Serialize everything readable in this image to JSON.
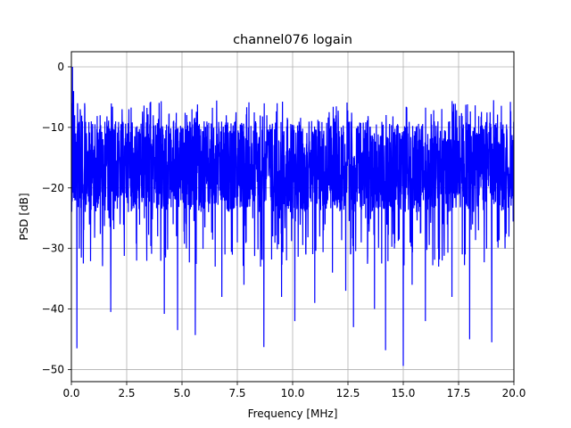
{
  "chart_data": {
    "type": "line",
    "title": "channel076 logain",
    "xlabel": "Frequency [MHz]",
    "ylabel": "PSD [dB]",
    "xlim": [
      0,
      20
    ],
    "ylim": [
      -52,
      2.5
    ],
    "xticks": [
      0,
      2.5,
      5,
      7.5,
      10,
      12.5,
      15,
      17.5,
      20
    ],
    "xtick_labels": [
      "0.0",
      "2.5",
      "5.0",
      "7.5",
      "10.0",
      "12.5",
      "15.0",
      "17.5",
      "20.0"
    ],
    "yticks": [
      0,
      -10,
      -20,
      -30,
      -40,
      -50
    ],
    "ytick_labels": [
      "0",
      "−10",
      "−20",
      "−30",
      "−40",
      "−50"
    ],
    "grid": true,
    "legend": "none",
    "series": [
      {
        "color": "#0000ff",
        "x": [
          0,
          0.05,
          0.08,
          0.1,
          0.12,
          0.15,
          0.18,
          0.2,
          0.25,
          0.28,
          0.32,
          0.36,
          0.4,
          0.45,
          0.5,
          0.55,
          0.6,
          0.7,
          0.8,
          0.9,
          1.0,
          1.1,
          1.2,
          1.3,
          1.4,
          1.5,
          1.6,
          1.7,
          1.78,
          1.85,
          2.0,
          2.2,
          2.4,
          2.6,
          2.8,
          2.95,
          3.1,
          3.3,
          3.5,
          3.7,
          3.9,
          4.0,
          4.2,
          4.45,
          4.6,
          4.8,
          5.0,
          5.2,
          5.45,
          5.6,
          5.8,
          6.0,
          6.2,
          6.5,
          6.6,
          6.8,
          7.0,
          7.2,
          7.5,
          7.6,
          7.8,
          8.0,
          8.2,
          8.4,
          8.55,
          8.7,
          8.9,
          9.1,
          9.3,
          9.5,
          9.7,
          9.9,
          10.1,
          10.3,
          10.6,
          10.8,
          11.0,
          11.2,
          11.4,
          11.6,
          11.8,
          12.0,
          12.2,
          12.4,
          12.6,
          12.75,
          12.9,
          13.1,
          13.3,
          13.5,
          13.7,
          13.9,
          14.1,
          14.2,
          14.4,
          14.6,
          14.8,
          15.0,
          15.05,
          15.2,
          15.4,
          15.6,
          15.8,
          16.0,
          16.2,
          16.4,
          16.6,
          16.8,
          17.0,
          17.2,
          17.4,
          17.6,
          17.8,
          18.0,
          18.2,
          18.4,
          18.6,
          18.8,
          19.0,
          19.2,
          19.4,
          19.6,
          19.8,
          20.0
        ],
        "y": [
          -6,
          0,
          -12,
          -4,
          -14,
          -8,
          -22,
          -11,
          -46.5,
          -6,
          -20,
          -30,
          -7,
          -31.5,
          -9,
          -24,
          -6,
          -21,
          -18,
          -9,
          -23,
          -15,
          -22,
          -8,
          -28,
          -19,
          -10,
          -25,
          -40.5,
          -14,
          -9,
          -26,
          -13,
          -7,
          -23,
          -32,
          -11,
          -25,
          -18,
          -8,
          -28,
          -21,
          -40.8,
          -11,
          -26,
          -43.5,
          -10,
          -30,
          -7,
          -44.3,
          -20,
          -9,
          -24,
          -33,
          -17,
          -38,
          -8,
          -22,
          -29,
          -12,
          -36,
          -10,
          -25,
          -19,
          -33,
          -46.3,
          -13,
          -28,
          -6,
          -38,
          -16,
          -24,
          -42,
          -11,
          -31,
          -20,
          -39,
          -9,
          -27,
          -14,
          -34,
          -22,
          -10,
          -37,
          -19,
          -43,
          -12,
          -29,
          -25,
          -11,
          -40,
          -16,
          -23,
          -46.8,
          -13,
          -30,
          -17,
          -49.4,
          -21,
          -11,
          -36,
          -24,
          -14,
          -42,
          -19,
          -9,
          -33,
          -26,
          -12,
          -38,
          -20,
          -15,
          -31,
          -45,
          -10,
          -27,
          -22,
          -11,
          -45.5,
          -18,
          -13,
          -30,
          -20,
          -16
        ]
      }
    ]
  }
}
